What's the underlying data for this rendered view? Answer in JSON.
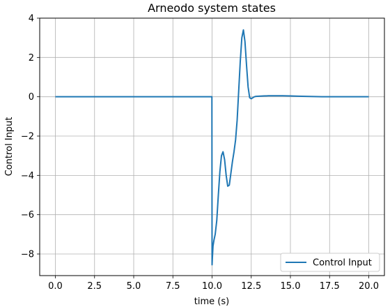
{
  "chart_data": {
    "type": "line",
    "title": "Arneodo system states",
    "xlabel": "time (s)",
    "ylabel": "Control Input",
    "xlim": [
      -1.0,
      21.0
    ],
    "ylim": [
      -9.1,
      4.0
    ],
    "xticks": [
      0.0,
      2.5,
      5.0,
      7.5,
      10.0,
      12.5,
      15.0,
      17.5,
      20.0
    ],
    "xtick_labels": [
      "0.0",
      "2.5",
      "5.0",
      "7.5",
      "10.0",
      "12.5",
      "15.0",
      "17.5",
      "20.0"
    ],
    "yticks": [
      4,
      2,
      0,
      -2,
      -4,
      -6,
      -8
    ],
    "ytick_labels": [
      "4",
      "2",
      "0",
      "−2",
      "−4",
      "−6",
      "−8"
    ],
    "grid": true,
    "legend_position": "bottom-right",
    "series": [
      {
        "name": "Control Input",
        "color": "#1f77b4",
        "x": [
          0.0,
          2.0,
          4.0,
          6.0,
          8.0,
          9.99,
          10.0,
          10.02,
          10.06,
          10.12,
          10.2,
          10.3,
          10.4,
          10.5,
          10.6,
          10.7,
          10.8,
          10.9,
          11.0,
          11.1,
          11.2,
          11.3,
          11.4,
          11.5,
          11.6,
          11.7,
          11.8,
          11.9,
          12.0,
          12.1,
          12.2,
          12.3,
          12.4,
          12.5,
          12.6,
          12.7,
          12.8,
          13.0,
          13.3,
          13.6,
          14.0,
          14.5,
          15.0,
          15.5,
          16.0,
          16.5,
          17.0,
          17.5,
          18.0,
          19.0,
          20.0
        ],
        "y": [
          0.0,
          0.0,
          0.0,
          0.0,
          0.0,
          0.0,
          -8.55,
          -8.2,
          -7.6,
          -7.3,
          -7.0,
          -6.3,
          -5.0,
          -3.8,
          -3.0,
          -2.8,
          -3.2,
          -4.0,
          -4.55,
          -4.5,
          -3.9,
          -3.3,
          -2.8,
          -2.2,
          -1.2,
          0.3,
          1.8,
          3.0,
          3.4,
          2.8,
          1.6,
          0.5,
          -0.05,
          -0.1,
          -0.05,
          0.0,
          0.02,
          0.03,
          0.04,
          0.05,
          0.05,
          0.05,
          0.04,
          0.03,
          0.02,
          0.01,
          0.0,
          0.0,
          0.0,
          0.0,
          0.0
        ]
      }
    ]
  }
}
